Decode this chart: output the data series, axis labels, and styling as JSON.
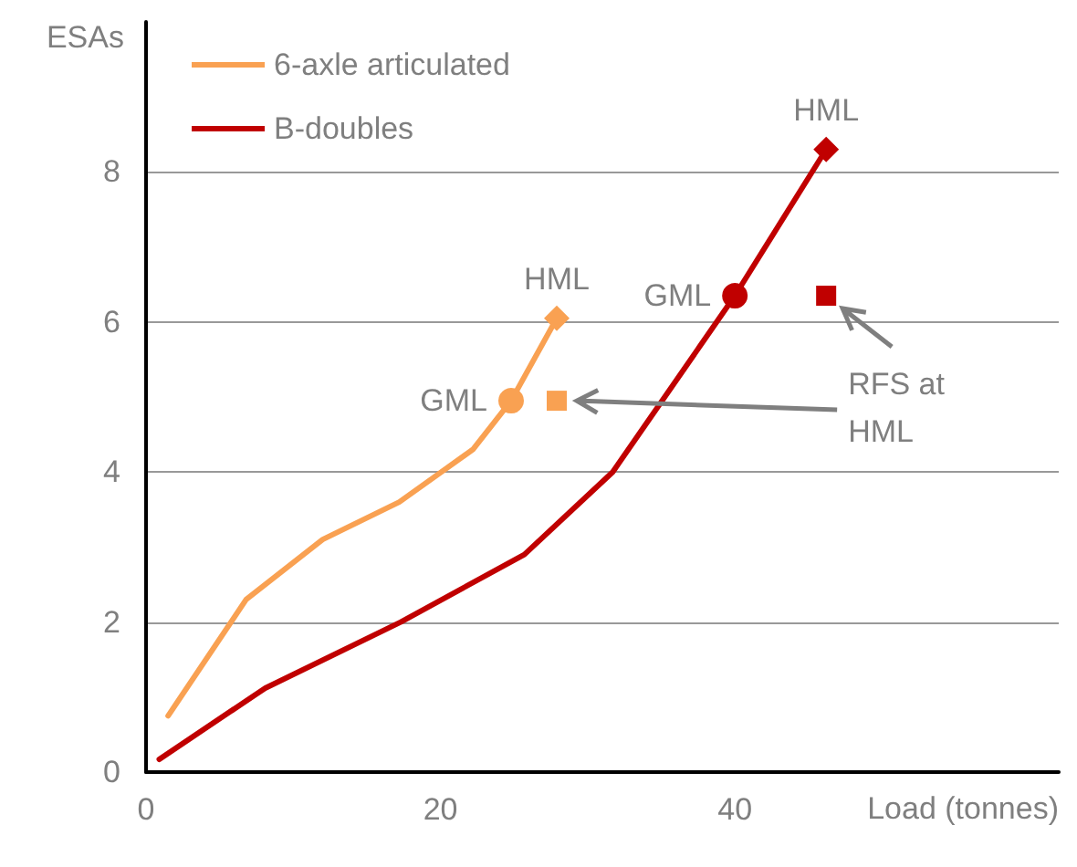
{
  "chart_data": {
    "type": "line",
    "xlabel": "Load (tonnes)",
    "ylabel": "ESAs",
    "xlim": [
      0,
      62
    ],
    "xticks": [
      0,
      20,
      40
    ],
    "ylim": [
      0,
      10
    ],
    "yticks": [
      0,
      2,
      4,
      6,
      8
    ],
    "grid": "y",
    "legend": "top left",
    "marker": "none",
    "line_style": "solid",
    "annotations": [
      "RFS at HML"
    ],
    "series": [
      {
        "name": "6-axle articulated",
        "color": "#f9a152",
        "x": [
          1.5,
          6.8,
          12.0,
          17.2,
          22.2,
          24.8,
          27.9
        ],
        "values": [
          0.75,
          2.3,
          3.1,
          3.6,
          4.3,
          4.95,
          6.05
        ]
      },
      {
        "name": "B-doubles",
        "color": "#c00000",
        "x": [
          0.9,
          8.1,
          17.3,
          25.7,
          31.7,
          40.0,
          46.2
        ],
        "values": [
          0.17,
          1.12,
          2.0,
          2.9,
          4.0,
          6.35,
          8.3
        ]
      },
      {
        "name": "GML",
        "type": "scatter",
        "marker": "circle",
        "colors": [
          "#f9a152",
          "#c00000"
        ],
        "x": [
          24.8,
          40.0
        ],
        "values": [
          4.95,
          6.35
        ]
      },
      {
        "name": "HML",
        "type": "scatter",
        "marker": "diamond",
        "colors": [
          "#f9a152",
          "#c00000"
        ],
        "x": [
          27.9,
          46.2
        ],
        "values": [
          6.05,
          8.3
        ]
      },
      {
        "type": "scatter",
        "marker": "square",
        "colors": [
          "#f9a152",
          "#c00000"
        ],
        "x": [
          27.9,
          46.2
        ],
        "values": [
          4.95,
          6.35
        ]
      }
    ]
  }
}
